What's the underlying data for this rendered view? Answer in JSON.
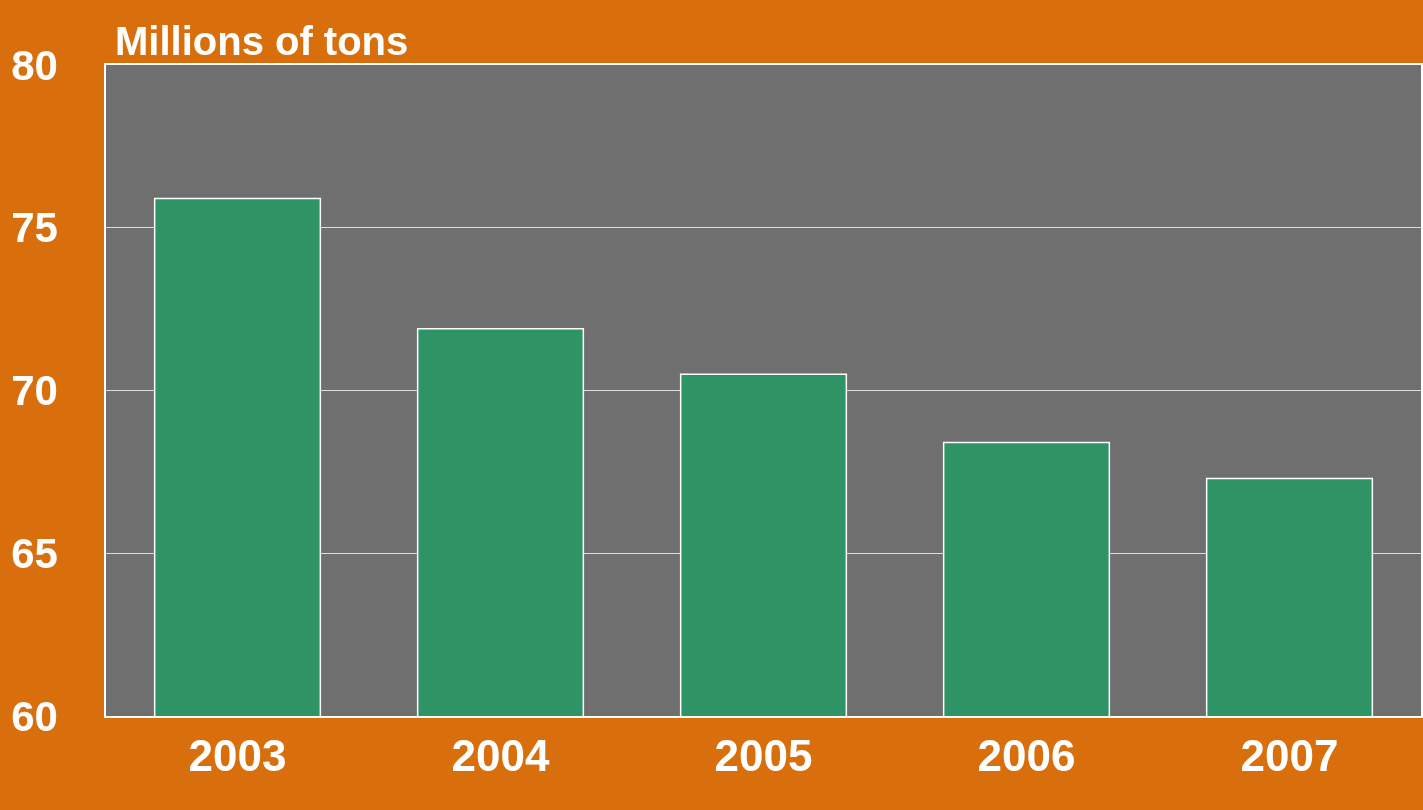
{
  "chart_data": {
    "type": "bar",
    "ylabel": "Millions of tons",
    "categories": [
      "2003",
      "2004",
      "2005",
      "2006",
      "2007"
    ],
    "values": [
      75.9,
      71.9,
      70.5,
      68.4,
      67.3
    ],
    "color": "#2e9466",
    "ylim": [
      60,
      80
    ],
    "yticks": [
      60,
      65,
      70,
      75,
      80
    ],
    "grid": "y"
  }
}
